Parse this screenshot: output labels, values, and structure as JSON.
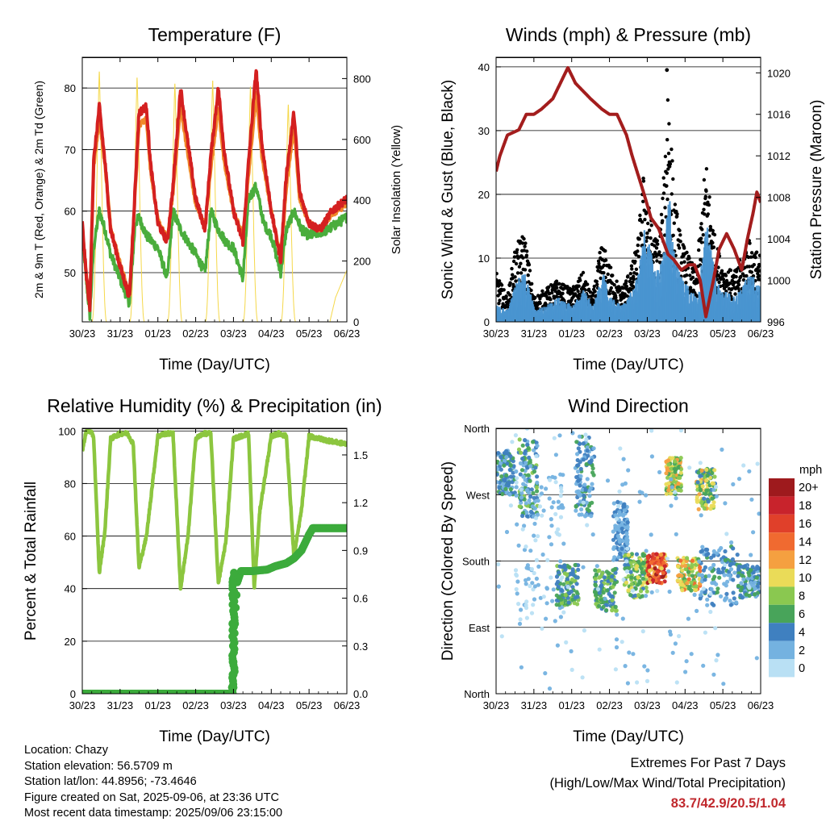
{
  "colors": {
    "temp_red": "#d42020",
    "temp_orange": "#f0892a",
    "dewpoint_green": "#4aad3c",
    "solar_yellow": "#f5d84a",
    "wind_blue": "#4a95d0",
    "gust_black": "#000000",
    "pressure_maroon": "#a31d1d",
    "rh_lightgreen": "#8cc63f",
    "precip_green": "#3cab3c"
  },
  "x_ticks": [
    "30/23",
    "31/23",
    "01/23",
    "02/23",
    "03/23",
    "04/23",
    "05/23",
    "06/23"
  ],
  "chart_data": [
    {
      "id": "temperature",
      "type": "line",
      "title": "Temperature (F)",
      "xlabel": "Time (Day/UTC)",
      "ylabel_left": "2m & 9m T (Red, Orange) & 2m Td (Green)",
      "ylabel_right": "Solar Insolation (Yellow)",
      "ylim_left": [
        42,
        85
      ],
      "ylim_right": [
        0,
        870
      ],
      "yticks_left": [
        50,
        60,
        70,
        80
      ],
      "yticks_right": [
        0,
        200,
        400,
        600,
        800
      ],
      "grid": "horizontal",
      "series": [
        {
          "key": "t2m",
          "x": [
            0,
            0.1,
            0.2,
            0.25,
            0.3,
            0.45,
            0.6,
            0.75,
            1,
            1.25,
            1.35,
            1.5,
            1.7,
            1.8,
            2,
            2.25,
            2.4,
            2.6,
            2.75,
            3,
            3.25,
            3.4,
            3.6,
            3.75,
            4,
            4.25,
            4.4,
            4.6,
            4.75,
            5,
            5.25,
            5.4,
            5.6,
            5.75,
            6,
            6.3,
            6.6,
            7
          ],
          "y": [
            58,
            50,
            44,
            57,
            68,
            77,
            68,
            57,
            51,
            46,
            58,
            76,
            77,
            68,
            58,
            55,
            64,
            80,
            73,
            62,
            57,
            69,
            80,
            70,
            60,
            55,
            68,
            83,
            71,
            60,
            52,
            66,
            76,
            63,
            58,
            57,
            60,
            62
          ]
        },
        {
          "key": "t9m",
          "x": [
            0,
            0.1,
            0.2,
            0.25,
            0.3,
            0.45,
            0.6,
            0.75,
            1,
            1.25,
            1.35,
            1.5,
            1.7,
            1.8,
            2,
            2.25,
            2.4,
            2.6,
            2.75,
            3,
            3.25,
            3.4,
            3.6,
            3.75,
            4,
            4.25,
            4.4,
            4.6,
            4.75,
            5,
            5.25,
            5.4,
            5.6,
            5.75,
            6,
            6.3,
            6.6,
            7
          ],
          "y": [
            57.5,
            50,
            44.5,
            56.5,
            67,
            75,
            67.5,
            57.5,
            51.5,
            46.5,
            57.5,
            74,
            75,
            67,
            58.5,
            55.5,
            63,
            77,
            71,
            61,
            57.5,
            67,
            77,
            68,
            60,
            56,
            66,
            79,
            69,
            60,
            52.5,
            64,
            74,
            62,
            58,
            57,
            59.5,
            61
          ]
        },
        {
          "key": "td",
          "x": [
            0,
            0.1,
            0.2,
            0.3,
            0.45,
            0.6,
            0.75,
            1,
            1.25,
            1.4,
            1.5,
            1.7,
            2,
            2.25,
            2.4,
            2.6,
            2.8,
            3,
            3.25,
            3.4,
            3.6,
            3.8,
            4,
            4.25,
            4.4,
            4.6,
            4.8,
            5,
            5.25,
            5.4,
            5.6,
            5.8,
            6,
            6.5,
            7
          ],
          "y": [
            57,
            49,
            43,
            54,
            60,
            57,
            53,
            49,
            45,
            58,
            59,
            56,
            54,
            49,
            60,
            57,
            55,
            53,
            50,
            60,
            57,
            55,
            54,
            49,
            62,
            64,
            58,
            56,
            50,
            57,
            60,
            57,
            56,
            57,
            59
          ]
        },
        {
          "key": "solar",
          "x": [
            0,
            0.25,
            0.45,
            0.65,
            1,
            1.25,
            1.45,
            1.65,
            2,
            2.25,
            2.45,
            2.65,
            3,
            3.25,
            3.45,
            3.65,
            4,
            4.25,
            4.45,
            4.65,
            5,
            5.25,
            5.45,
            5.65,
            6,
            6.25,
            6.45,
            6.55,
            6.7,
            7
          ],
          "y": [
            0,
            0,
            830,
            0,
            0,
            0,
            810,
            0,
            0,
            0,
            790,
            0,
            0,
            0,
            800,
            0,
            0,
            0,
            780,
            0,
            0,
            0,
            720,
            0,
            0,
            0,
            0,
            0,
            80,
            170
          ]
        }
      ]
    },
    {
      "id": "winds",
      "type": "scatter",
      "title": "Winds (mph) & Pressure (mb)",
      "xlabel": "Time (Day/UTC)",
      "ylabel_left": "Sonic Wind & Gust (Blue, Black)",
      "ylabel_right": "Station Pressure (Maroon)",
      "ylim_left": [
        0,
        41.5
      ],
      "ylim_right": [
        996,
        1021.5
      ],
      "yticks_left": [
        0,
        10,
        20,
        30,
        40
      ],
      "yticks_right": [
        996,
        1000,
        1004,
        1008,
        1012,
        1016,
        1020
      ],
      "grid": "horizontal",
      "series": [
        {
          "key": "wind",
          "x": [
            0,
            0.3,
            0.5,
            0.75,
            1,
            1.3,
            1.6,
            2,
            2.3,
            2.55,
            2.8,
            3,
            3.3,
            3.6,
            3.75,
            3.9,
            4.2,
            4.4,
            4.55,
            4.7,
            4.9,
            5.1,
            5.3,
            5.55,
            5.8,
            6,
            6.3,
            6.7,
            7
          ],
          "y": [
            2,
            1.5,
            5,
            6,
            1.5,
            2,
            3,
            2,
            4,
            1.8,
            6,
            3,
            2,
            4,
            6,
            12,
            6,
            8,
            16,
            8,
            6,
            4,
            3,
            12,
            5,
            4,
            3,
            6,
            4
          ]
        },
        {
          "key": "gust",
          "x": [
            0,
            0.3,
            0.5,
            0.75,
            1,
            1.3,
            1.6,
            2,
            2.3,
            2.55,
            2.8,
            3,
            3.3,
            3.6,
            3.75,
            3.9,
            4.2,
            4.4,
            4.55,
            4.7,
            4.9,
            5.1,
            5.3,
            5.55,
            5.8,
            6,
            6.3,
            6.7,
            7
          ],
          "y": [
            6,
            3,
            9,
            11,
            3,
            4,
            5,
            4,
            6,
            3,
            10,
            7,
            4,
            7,
            10,
            18,
            10,
            14,
            32,
            16,
            10,
            8,
            6,
            20,
            10,
            7,
            6,
            10,
            8
          ]
        },
        {
          "key": "pressure",
          "x": [
            0,
            0.1,
            0.3,
            0.6,
            0.8,
            1,
            1.2,
            1.5,
            1.7,
            1.9,
            2.1,
            2.5,
            2.8,
            3,
            3.2,
            3.45,
            3.6,
            3.9,
            4.1,
            4.3,
            4.4,
            4.55,
            4.7,
            4.9,
            5.1,
            5.25,
            5.4,
            5.55,
            5.75,
            5.9,
            6.1,
            6.3,
            6.5,
            6.65,
            6.8,
            6.9,
            7
          ],
          "y": [
            1010.5,
            1012,
            1014,
            1014.5,
            1016,
            1016,
            1016.5,
            1017.5,
            1019,
            1020.5,
            1019,
            1017.5,
            1016.5,
            1016,
            1016,
            1014,
            1012,
            1008.5,
            1006,
            1005,
            1004,
            1002.5,
            1002,
            1001,
            1001.5,
            1001.5,
            1000,
            996.5,
            1000,
            1003,
            1004.5,
            1003,
            1001,
            1004,
            1006.5,
            1008.5,
            1007.5
          ]
        }
      ]
    },
    {
      "id": "humidity",
      "type": "line",
      "title": "Relative Humidity (%) & Precipitation (in)",
      "xlabel": "Time (Day/UTC)",
      "ylabel_left": "Percent & Total Rainfall",
      "ylim_left": [
        0,
        101
      ],
      "ylim_right": [
        0,
        1.667
      ],
      "yticks_left": [
        0,
        20,
        40,
        60,
        80,
        100
      ],
      "yticks_right": [
        0.0,
        0.3,
        0.6,
        0.9,
        1.2,
        1.5
      ],
      "yticklabels_right": [
        "0.0",
        "0.3",
        "0.6",
        "0.9",
        "1.2",
        "1.5"
      ],
      "grid": "horizontal",
      "series": [
        {
          "key": "rh",
          "x": [
            0,
            0.1,
            0.2,
            0.3,
            0.45,
            0.6,
            0.75,
            1,
            1.2,
            1.35,
            1.5,
            1.7,
            2,
            2.2,
            2.4,
            2.6,
            2.8,
            3,
            3.2,
            3.4,
            3.6,
            3.8,
            4,
            4.2,
            4.4,
            4.55,
            4.7,
            5,
            5.2,
            5.4,
            5.6,
            5.8,
            6,
            6.3,
            6.6,
            7
          ],
          "y": [
            92,
            100,
            100,
            98,
            46,
            62,
            97,
            99,
            99,
            95,
            48,
            60,
            98,
            99,
            99,
            40,
            60,
            97,
            99,
            99,
            42,
            58,
            97,
            98,
            99,
            40,
            70,
            98,
            99,
            98,
            52,
            70,
            98,
            97,
            96,
            95
          ]
        },
        {
          "key": "precip",
          "x": [
            0,
            3.8,
            3.95,
            4.0,
            4.05,
            4.1,
            4.2,
            4.5,
            4.9,
            5.1,
            5.4,
            5.6,
            5.8,
            5.9,
            6.0,
            6.1,
            6.3,
            6.5,
            7
          ],
          "y": [
            0,
            0,
            0,
            0.2,
            0.5,
            0.7,
            0.77,
            0.77,
            0.78,
            0.8,
            0.82,
            0.85,
            0.9,
            0.95,
            1.0,
            1.04,
            1.04,
            1.04,
            1.04
          ]
        }
      ]
    },
    {
      "id": "wind_direction",
      "type": "scatter",
      "title": "Wind Direction",
      "xlabel": "Time (Day/UTC)",
      "ylabel": "Direction (Colored By Speed)",
      "ylim": [
        0,
        360
      ],
      "yticks": [
        0,
        90,
        180,
        270,
        360
      ],
      "yticklabels": [
        "North",
        "East",
        "South",
        "West",
        "North"
      ],
      "grid": "horizontal",
      "legend": {
        "title": "mph",
        "placement": "right",
        "levels": [
          "20+",
          "18",
          "16",
          "14",
          "12",
          "10",
          "8",
          "6",
          "4",
          "2",
          "0"
        ],
        "colors": [
          "#9e1a1d",
          "#c8232c",
          "#e0402a",
          "#f06a30",
          "#f5a040",
          "#eadb58",
          "#8ac850",
          "#48a45a",
          "#3f80c0",
          "#74b2e0",
          "#b9e0f4"
        ]
      },
      "clusters": [
        {
          "x": [
            0,
            0.5
          ],
          "y": [
            270,
            330
          ],
          "speed": [
            2,
            6
          ]
        },
        {
          "x": [
            0.6,
            1.1
          ],
          "y": [
            240,
            345
          ],
          "speed": [
            2,
            8
          ]
        },
        {
          "x": [
            0.5,
            1.8
          ],
          "y": [
            100,
            300
          ],
          "speed": [
            0,
            3
          ]
        },
        {
          "x": [
            1.6,
            2.2
          ],
          "y": [
            120,
            175
          ],
          "speed": [
            3,
            8
          ]
        },
        {
          "x": [
            2.1,
            2.6
          ],
          "y": [
            240,
            350
          ],
          "speed": [
            1,
            7
          ]
        },
        {
          "x": [
            2.6,
            3.2
          ],
          "y": [
            110,
            170
          ],
          "speed": [
            3,
            9
          ]
        },
        {
          "x": [
            3.1,
            3.5
          ],
          "y": [
            180,
            260
          ],
          "speed": [
            1,
            5
          ]
        },
        {
          "x": [
            3.4,
            4.0
          ],
          "y": [
            130,
            190
          ],
          "speed": [
            4,
            10
          ]
        },
        {
          "x": [
            4.0,
            4.5
          ],
          "y": [
            150,
            190
          ],
          "speed": [
            10,
            20
          ]
        },
        {
          "x": [
            4.5,
            4.9
          ],
          "y": [
            270,
            320
          ],
          "speed": [
            6,
            12
          ]
        },
        {
          "x": [
            4.8,
            5.4
          ],
          "y": [
            140,
            185
          ],
          "speed": [
            6,
            14
          ]
        },
        {
          "x": [
            5.3,
            5.8
          ],
          "y": [
            250,
            305
          ],
          "speed": [
            4,
            12
          ]
        },
        {
          "x": [
            5.4,
            6.4
          ],
          "y": [
            120,
            200
          ],
          "speed": [
            1,
            6
          ]
        },
        {
          "x": [
            6.4,
            7.0
          ],
          "y": [
            130,
            175
          ],
          "speed": [
            2,
            7
          ]
        },
        {
          "x": [
            0,
            7
          ],
          "y": [
            0,
            360
          ],
          "speed": [
            0,
            3
          ]
        }
      ]
    }
  ],
  "info": {
    "location": "Location: Chazy",
    "elevation": "Station elevation: 56.5709 m",
    "latlon": "Station lat/lon: 44.8956; -73.4646",
    "created": "Figure created on Sat, 2025-09-06, at 23:36 UTC",
    "recent": "Most recent data timestamp: 2025/09/06 23:15:00"
  },
  "extremes": {
    "heading": "Extremes For Past 7 Days",
    "subheading": "(High/Low/Max Wind/Total Precipitation)",
    "values": "83.7/42.9/20.5/1.04"
  }
}
